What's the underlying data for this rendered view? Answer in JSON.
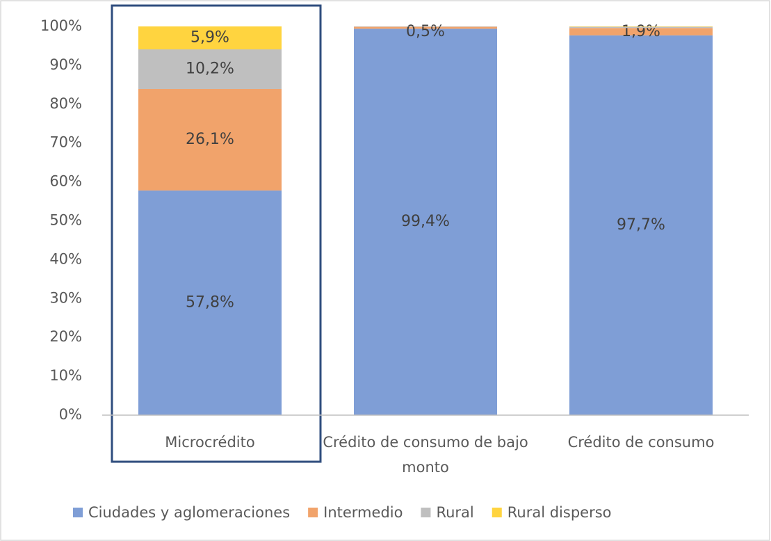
{
  "chart_data": {
    "type": "stacked_bar",
    "categories": [
      "Microcrédito",
      "Crédito de consumo de bajo monto",
      "Crédito de consumo"
    ],
    "series": [
      {
        "name": "Ciudades y aglomeraciones",
        "color": "#7f9ed6",
        "values": [
          57.8,
          99.4,
          97.7
        ],
        "value_labels": [
          "57,8%",
          "99,4%",
          "97,7%"
        ]
      },
      {
        "name": "Intermedio",
        "color": "#f1a36b",
        "values": [
          26.1,
          0.5,
          1.9
        ],
        "value_labels": [
          "26,1%",
          "0,5%",
          "1,9%"
        ]
      },
      {
        "name": "Rural",
        "color": "#bfbfbf",
        "values": [
          10.2,
          0.1,
          0.3
        ],
        "value_labels": [
          "10,2%",
          null,
          null
        ]
      },
      {
        "name": "Rural disperso",
        "color": "#ffd43f",
        "values": [
          5.9,
          0,
          0.1
        ],
        "value_labels": [
          "5,9%",
          null,
          null
        ]
      }
    ],
    "ylim": [
      0,
      100
    ],
    "yticks": [
      {
        "value": 0,
        "label": "0%"
      },
      {
        "value": 10,
        "label": "10%"
      },
      {
        "value": 20,
        "label": "20%"
      },
      {
        "value": 30,
        "label": "30%"
      },
      {
        "value": 40,
        "label": "40%"
      },
      {
        "value": 50,
        "label": "50%"
      },
      {
        "value": 60,
        "label": "60%"
      },
      {
        "value": 70,
        "label": "70%"
      },
      {
        "value": 80,
        "label": "80%"
      },
      {
        "value": 90,
        "label": "90%"
      },
      {
        "value": 100,
        "label": "100%"
      }
    ],
    "grid": false,
    "legend": "bottom"
  }
}
